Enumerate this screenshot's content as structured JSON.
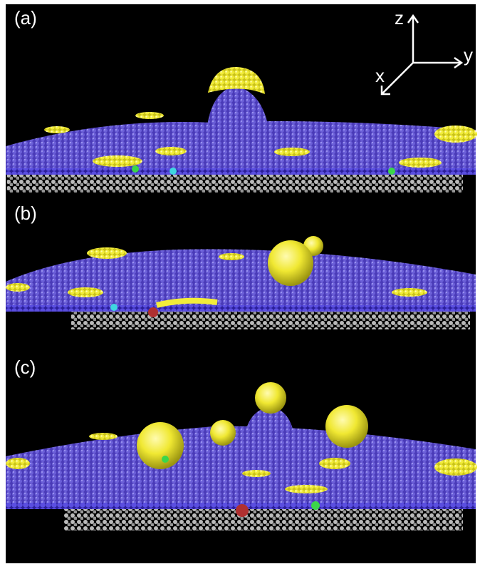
{
  "panels": [
    {
      "label": "(a)"
    },
    {
      "label": "(b)"
    },
    {
      "label": "(c)"
    }
  ],
  "axes": {
    "z": "z",
    "y": "y",
    "x": "x"
  }
}
